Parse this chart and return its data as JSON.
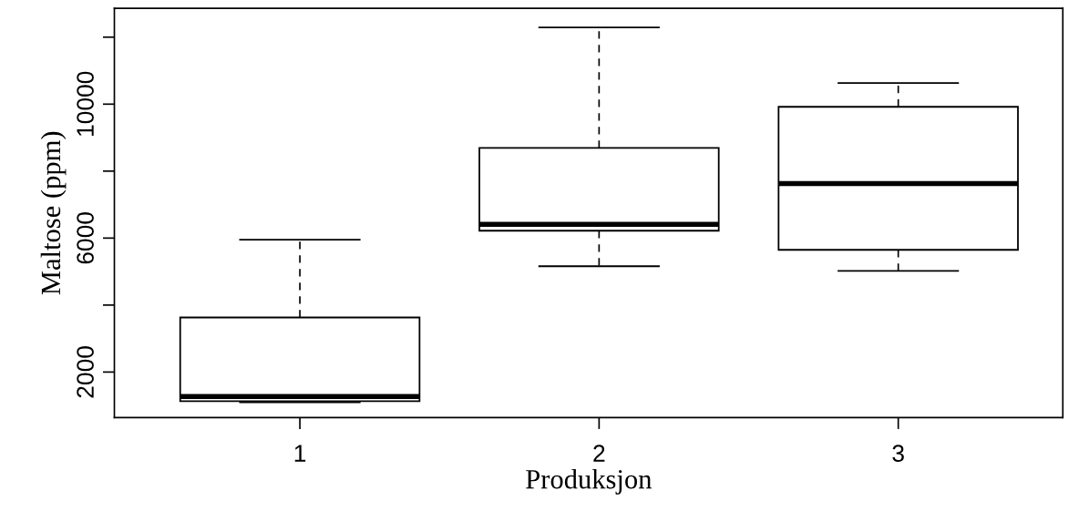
{
  "chart_data": {
    "type": "box",
    "xlabel": "Produksjon",
    "ylabel": "Maltose (ppm)",
    "categories": [
      "1",
      "2",
      "3"
    ],
    "boxes": [
      {
        "low": 1100,
        "q1": 1130,
        "median": 1270,
        "q3": 3630,
        "high": 5950
      },
      {
        "low": 5160,
        "q1": 6220,
        "median": 6410,
        "q3": 8690,
        "high": 12290
      },
      {
        "low": 5020,
        "q1": 5650,
        "median": 7630,
        "q3": 9920,
        "high": 10630
      }
    ],
    "color": "#ffffff",
    "ylim": [
      640,
      12860
    ],
    "yticks": [
      2000,
      {
        "value": 4000,
        "label": null
      },
      6000,
      {
        "value": 8000,
        "label": null
      },
      10000,
      {
        "value": 12000,
        "label": null
      }
    ],
    "grid": false,
    "legend": false
  }
}
